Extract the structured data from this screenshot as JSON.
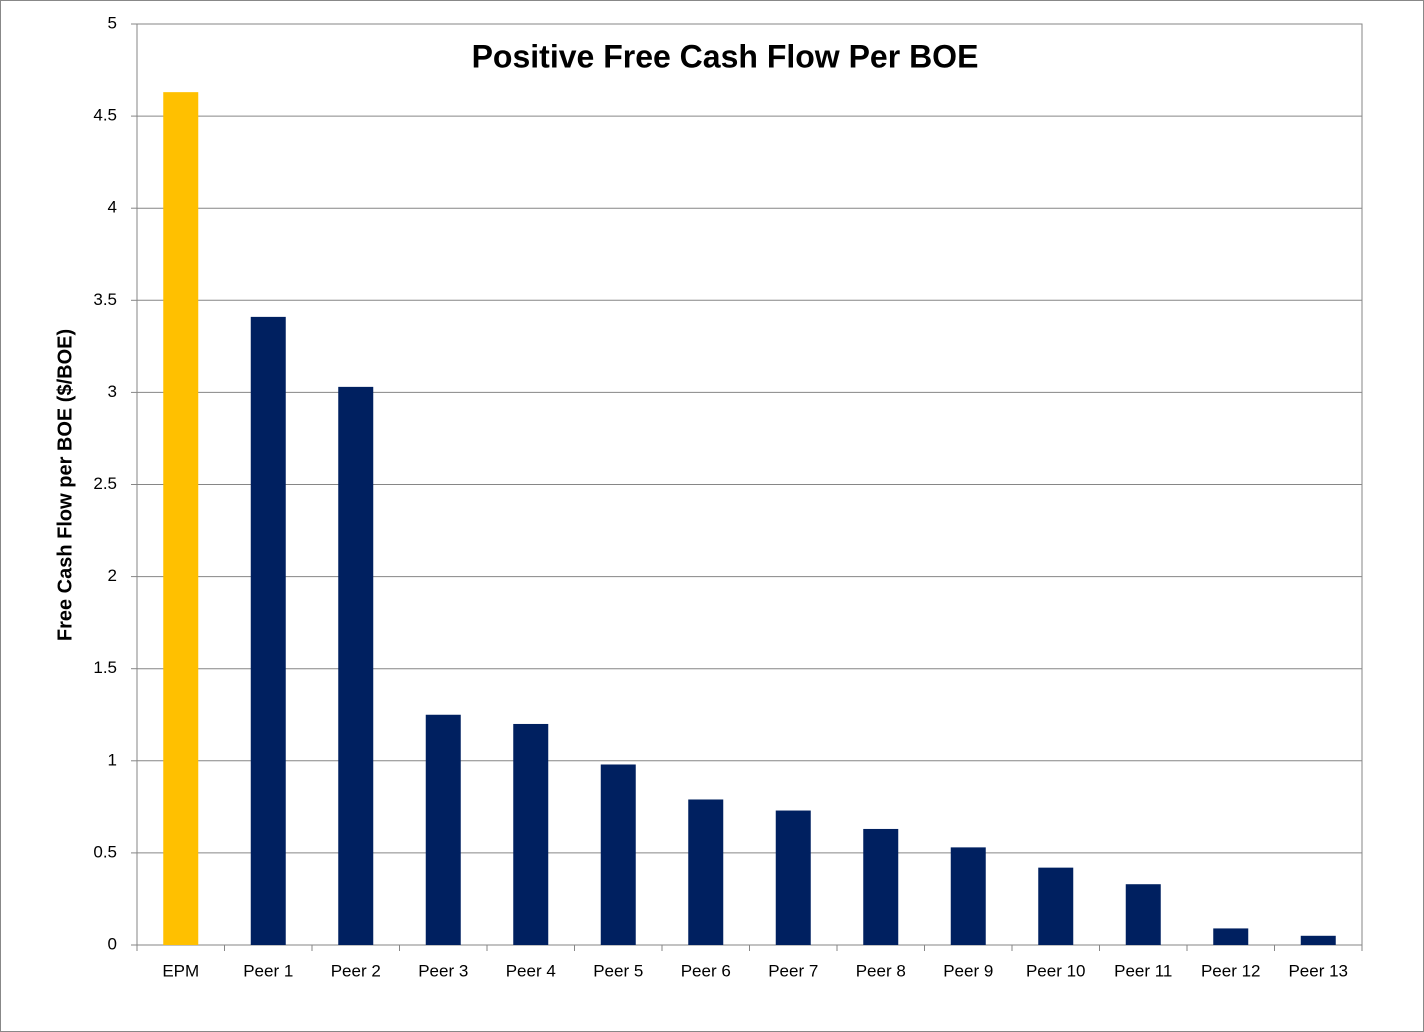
{
  "chart_data": {
    "type": "bar",
    "title": "Positive Free Cash Flow Per BOE",
    "y_label": "Free Cash Flow per BOE ($/BOE)",
    "categories": [
      "EPM",
      "Peer 1",
      "Peer 2",
      "Peer 3",
      "Peer 4",
      "Peer 5",
      "Peer 6",
      "Peer 7",
      "Peer 8",
      "Peer 9",
      "Peer 10",
      "Peer 11",
      "Peer 12",
      "Peer 13"
    ],
    "values": [
      4.63,
      3.41,
      3.03,
      1.25,
      1.2,
      0.98,
      0.79,
      0.73,
      0.63,
      0.53,
      0.42,
      0.33,
      0.09,
      0.05
    ],
    "colors": [
      "#ffc000",
      "#002060",
      "#002060",
      "#002060",
      "#002060",
      "#002060",
      "#002060",
      "#002060",
      "#002060",
      "#002060",
      "#002060",
      "#002060",
      "#002060",
      "#002060"
    ],
    "ylim": [
      0,
      5
    ],
    "yticks": [
      0,
      0.5,
      1,
      1.5,
      2,
      2.5,
      3,
      3.5,
      4,
      4.5,
      5
    ],
    "grid": true
  }
}
